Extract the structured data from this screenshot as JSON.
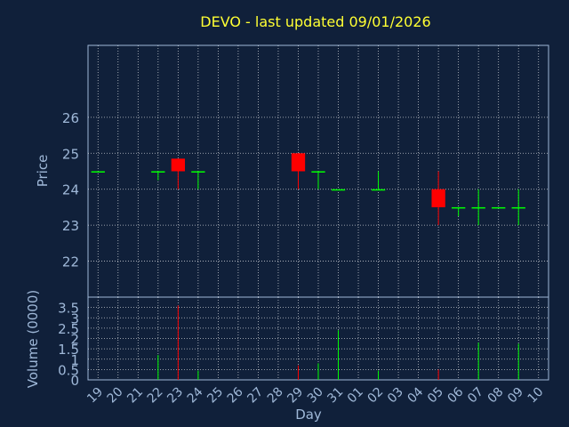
{
  "title": "DEVO - last updated 09/01/2026",
  "colors": {
    "background": "#10203a",
    "title": "#ffff33",
    "axis_text": "#9fb8d8",
    "grid": "#ffffff",
    "up": "#00ff00",
    "down": "#ff0000"
  },
  "chart_data": [
    {
      "type": "candlestick",
      "title": "DEVO - last updated 09/01/2026",
      "ylabel": "Price",
      "ylim": [
        21,
        28
      ],
      "yticks": [
        22,
        23,
        24,
        25,
        26
      ],
      "grid": true,
      "categories": [
        "19",
        "20",
        "21",
        "22",
        "23",
        "24",
        "25",
        "26",
        "27",
        "28",
        "29",
        "30",
        "31",
        "01",
        "02",
        "03",
        "04",
        "05",
        "06",
        "07",
        "08",
        "09",
        "10"
      ],
      "candles": [
        {
          "day": "19",
          "open": 24.5,
          "high": 24.5,
          "low": 24.5,
          "close": 24.5
        },
        {
          "day": "22",
          "open": 24.5,
          "high": 24.5,
          "low": 24.25,
          "close": 24.5
        },
        {
          "day": "23",
          "open": 24.85,
          "high": 24.85,
          "low": 24.0,
          "close": 24.5
        },
        {
          "day": "24",
          "open": 24.5,
          "high": 24.5,
          "low": 24.0,
          "close": 24.5
        },
        {
          "day": "29",
          "open": 25.0,
          "high": 25.0,
          "low": 24.0,
          "close": 24.5
        },
        {
          "day": "30",
          "open": 24.5,
          "high": 24.5,
          "low": 24.0,
          "close": 24.5
        },
        {
          "day": "31",
          "open": 24.0,
          "high": 24.0,
          "low": 24.0,
          "close": 24.0
        },
        {
          "day": "02",
          "open": 24.0,
          "high": 24.5,
          "low": 24.0,
          "close": 24.0
        },
        {
          "day": "05",
          "open": 24.0,
          "high": 24.5,
          "low": 23.0,
          "close": 23.5
        },
        {
          "day": "06",
          "open": 23.5,
          "high": 23.5,
          "low": 23.25,
          "close": 23.5
        },
        {
          "day": "07",
          "open": 23.5,
          "high": 24.0,
          "low": 23.0,
          "close": 23.5
        },
        {
          "day": "08",
          "open": 23.5,
          "high": 23.5,
          "low": 23.5,
          "close": 23.5
        },
        {
          "day": "09",
          "open": 23.5,
          "high": 24.0,
          "low": 23.0,
          "close": 23.5
        }
      ]
    },
    {
      "type": "bar",
      "xlabel": "Day",
      "ylabel": "Volume (0000)",
      "ylim": [
        0,
        4
      ],
      "yticks": [
        0,
        0.5,
        1,
        1.5,
        2,
        2.5,
        3,
        3.5
      ],
      "ytick_labels": [
        "0",
        "0.5",
        "1",
        "1.5",
        "2",
        "2.5",
        "3",
        "3.5"
      ],
      "grid": true,
      "categories": [
        "19",
        "20",
        "21",
        "22",
        "23",
        "24",
        "25",
        "26",
        "27",
        "28",
        "29",
        "30",
        "31",
        "01",
        "02",
        "03",
        "04",
        "05",
        "06",
        "07",
        "08",
        "09",
        "10"
      ],
      "bars": [
        {
          "day": "19",
          "value": 0.0,
          "color": "up"
        },
        {
          "day": "22",
          "value": 1.2,
          "color": "up"
        },
        {
          "day": "23",
          "value": 3.6,
          "color": "down"
        },
        {
          "day": "24",
          "value": 0.45,
          "color": "up"
        },
        {
          "day": "29",
          "value": 0.7,
          "color": "down"
        },
        {
          "day": "30",
          "value": 0.8,
          "color": "up"
        },
        {
          "day": "31",
          "value": 2.4,
          "color": "up"
        },
        {
          "day": "02",
          "value": 0.45,
          "color": "up"
        },
        {
          "day": "05",
          "value": 0.5,
          "color": "down"
        },
        {
          "day": "06",
          "value": 0.0,
          "color": "up"
        },
        {
          "day": "07",
          "value": 1.8,
          "color": "up"
        },
        {
          "day": "08",
          "value": 0.0,
          "color": "up"
        },
        {
          "day": "09",
          "value": 1.75,
          "color": "up"
        }
      ]
    }
  ]
}
